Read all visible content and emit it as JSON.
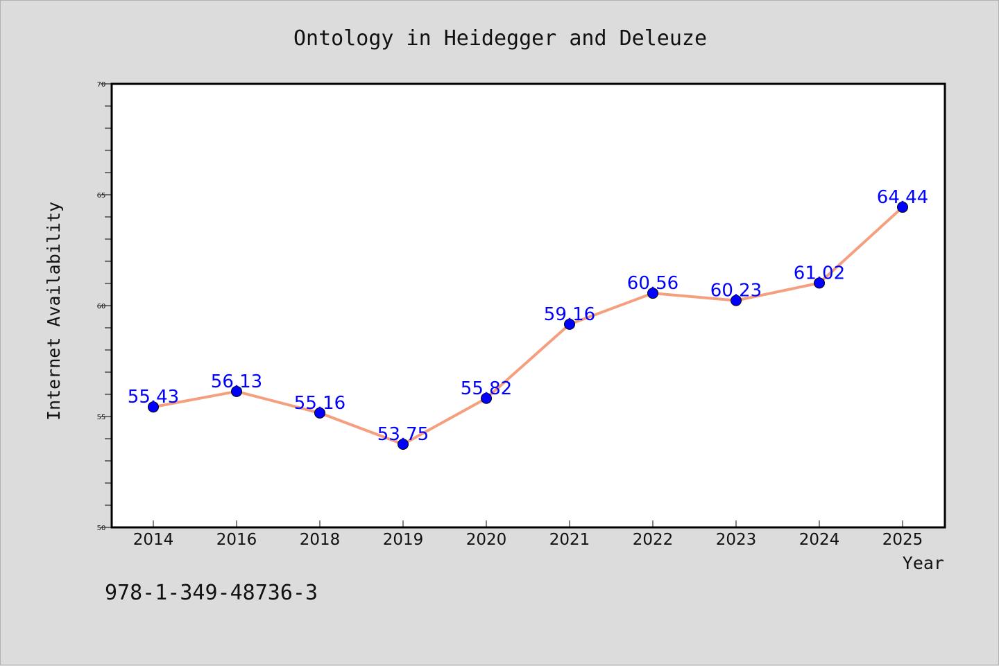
{
  "chart_data": {
    "type": "line",
    "title": "Ontology in Heidegger and Deleuze",
    "xlabel": "Year",
    "ylabel": "Internet Availability",
    "categories": [
      "2014",
      "2016",
      "2018",
      "2019",
      "2020",
      "2021",
      "2022",
      "2023",
      "2024",
      "2025"
    ],
    "series": [
      {
        "values": [
          55.43,
          56.13,
          55.16,
          53.75,
          55.82,
          59.16,
          60.56,
          60.23,
          61.02,
          64.44
        ],
        "data_labels": [
          "55.43",
          "56.13",
          "55.16",
          "53.75",
          "55.82",
          "59.16",
          "60.56",
          "60.23",
          "61.02",
          "64.44"
        ],
        "line_color": "#f4a07f",
        "marker_color": "#0000ff"
      }
    ],
    "ylim": [
      50,
      70
    ],
    "yticks": [
      50,
      55,
      60,
      65,
      70
    ],
    "ytick_labels": [
      "50",
      "55",
      "60",
      "65",
      "70"
    ],
    "grid": false,
    "legend": "none"
  },
  "footer": {
    "isbn": "978-1-349-48736-3"
  }
}
